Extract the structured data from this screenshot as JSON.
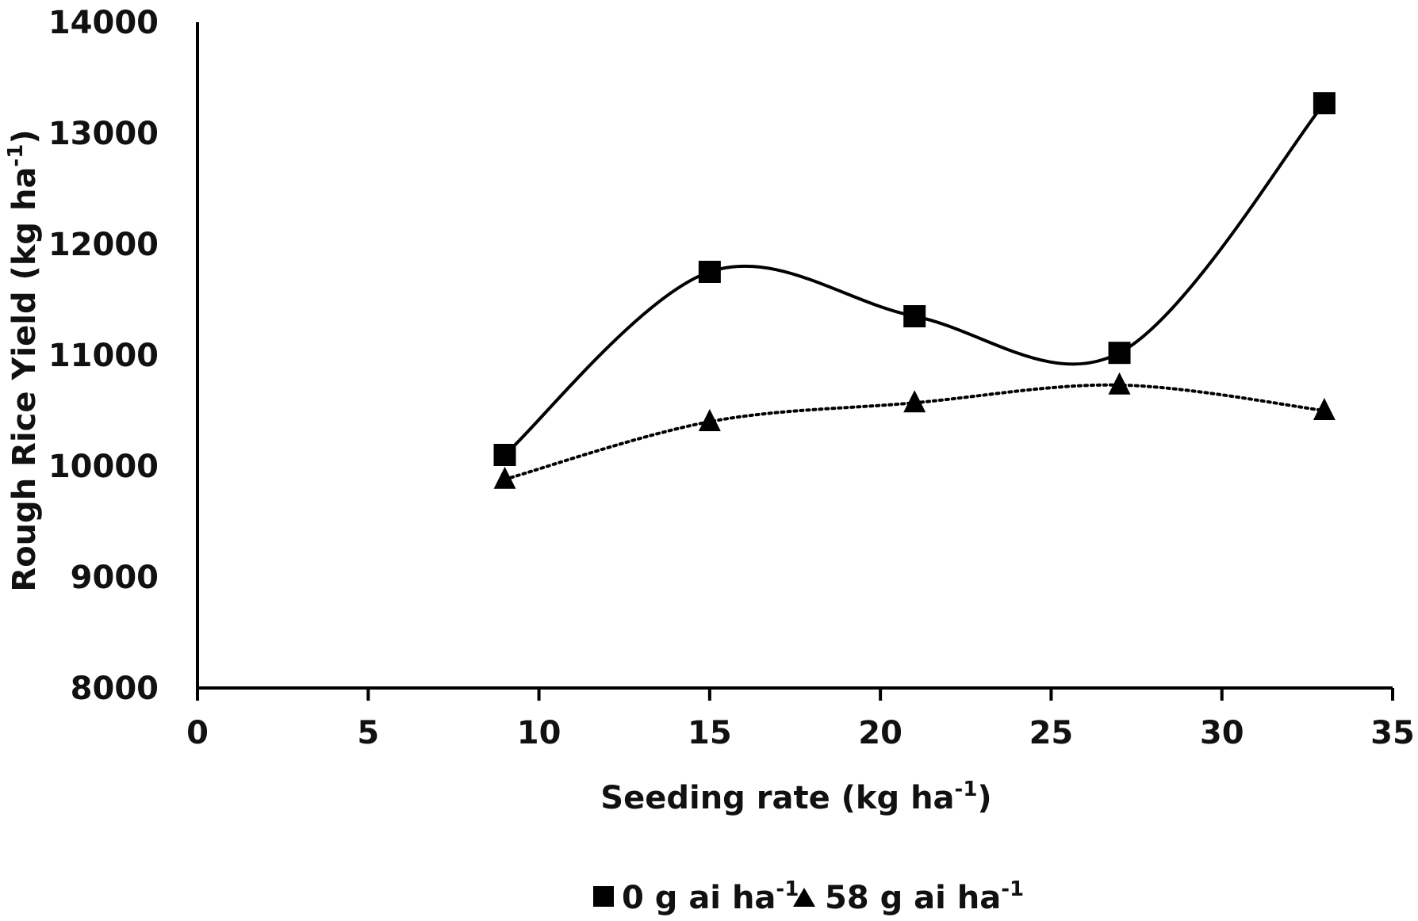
{
  "chart_data": {
    "type": "scatter",
    "title": "",
    "xlabel": {
      "main": "Seeding rate (kg ha",
      "sup": "-1",
      "close": ")"
    },
    "ylabel": {
      "main": "Rough Rice Yield (kg ha",
      "sup": "-1",
      "close": ")"
    },
    "xlim": [
      0,
      35
    ],
    "ylim": [
      8000,
      14000
    ],
    "x_ticks": [
      0,
      5,
      10,
      15,
      20,
      25,
      30,
      35
    ],
    "y_ticks": [
      8000,
      9000,
      10000,
      11000,
      12000,
      13000,
      14000
    ],
    "grid": false,
    "legend_position": "bottom",
    "series": [
      {
        "name": {
          "main": "0 g ai ha",
          "sup": "-1"
        },
        "marker": "square",
        "line_style": "solid",
        "color": "#000000",
        "x": [
          9,
          15,
          21,
          27,
          33
        ],
        "y": [
          10100,
          11750,
          11350,
          11020,
          13270
        ]
      },
      {
        "name": {
          "main": "58 g ai ha",
          "sup": "-1"
        },
        "marker": "triangle",
        "line_style": "dotted",
        "color": "#000000",
        "x": [
          9,
          15,
          21,
          27,
          33
        ],
        "y": [
          9880,
          10400,
          10570,
          10730,
          10500
        ]
      }
    ]
  }
}
